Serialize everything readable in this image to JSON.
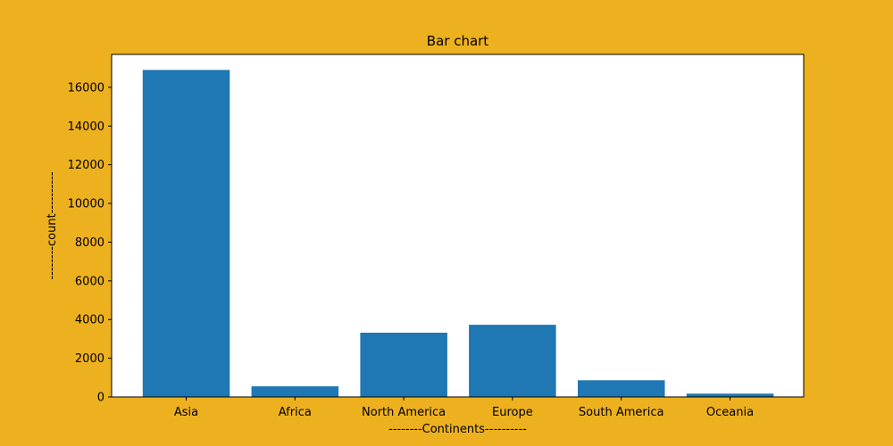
{
  "chart_data": {
    "type": "bar",
    "title": "Bar chart",
    "xlabel": "--------Continents----------",
    "ylabel": "--------count----------",
    "categories": [
      "Asia",
      "Africa",
      "North America",
      "Europe",
      "South America",
      "Oceania"
    ],
    "values": [
      16900,
      550,
      3320,
      3730,
      860,
      170
    ],
    "ylim": [
      0,
      17700
    ],
    "yticks": [
      0,
      2000,
      4000,
      6000,
      8000,
      10000,
      12000,
      14000,
      16000
    ],
    "grid": false,
    "colors": {
      "background": "#EDB11F",
      "plot_area": "#FFFFFF",
      "bar": "#1F77B4",
      "axis": "#000000"
    }
  }
}
